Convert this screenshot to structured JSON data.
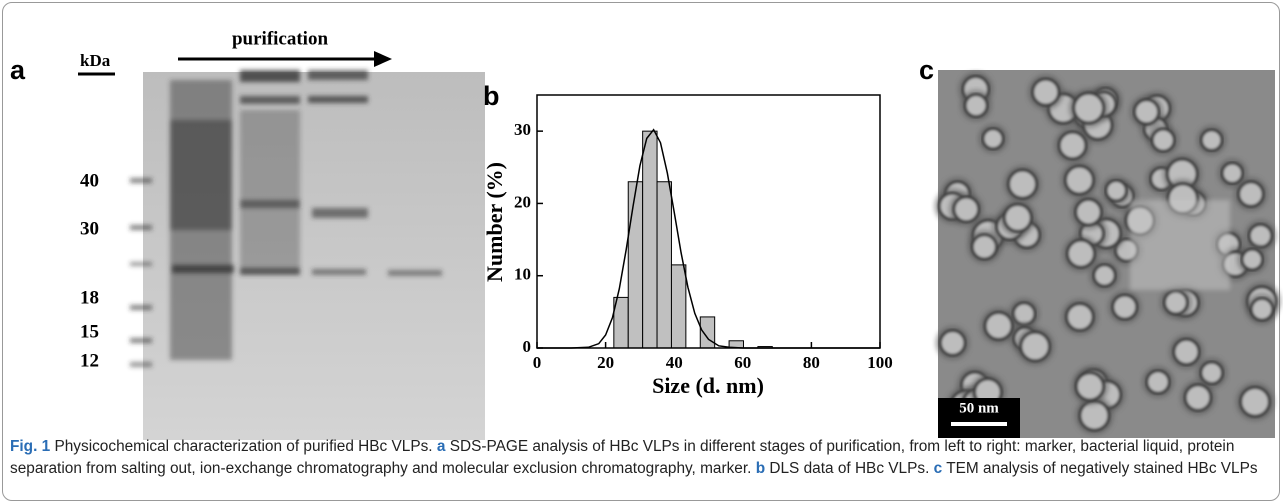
{
  "panel_a": {
    "letter": "a",
    "unit": "kDa",
    "arrow_label": "purification",
    "markers": [
      "40",
      "30",
      "18",
      "15",
      "12"
    ]
  },
  "chart_data": {
    "type": "histogram",
    "letter": "b",
    "y_label": "Number (%)",
    "x_label": "Size (d. nm)",
    "bins": [
      22.4,
      26.6,
      30.8,
      35,
      39.2,
      43.4,
      47.6,
      51.8,
      56,
      60.2,
      64.4,
      68.6
    ],
    "values": [
      7,
      23,
      30,
      23,
      11.5,
      0,
      4.3,
      0,
      1,
      0,
      0.2
    ],
    "color": "#c0c0c0",
    "fit_curve": {
      "x": [
        0,
        10,
        15,
        18,
        20,
        22,
        24,
        26,
        28,
        30,
        32,
        34,
        36,
        38,
        40,
        42,
        44,
        46,
        48,
        50,
        53,
        56,
        60,
        70,
        80,
        100
      ],
      "values": [
        0,
        0,
        0.1,
        0.6,
        1.8,
        4.2,
        8.2,
        13.6,
        19.6,
        25.2,
        29.0,
        30.2,
        28.4,
        24.2,
        18.8,
        13.2,
        8.4,
        4.8,
        2.5,
        1.2,
        0.3,
        0.1,
        0,
        0,
        0,
        0
      ]
    },
    "xlim": [
      0,
      100
    ],
    "ylim": [
      0,
      35
    ],
    "xticks": [
      0,
      20,
      40,
      60,
      80,
      100
    ],
    "yticks": [
      0,
      10,
      20,
      30
    ]
  },
  "panel_c": {
    "letter": "c",
    "scale_bar": "50 nm"
  },
  "caption": {
    "fig": "Fig. 1",
    "text": " Physicochemical characterization of purified HBc VLPs. ",
    "a": "a",
    "a_text": " SDS-PAGE analysis of HBc VLPs in different stages of purification, from left to right: marker, bacterial liquid, protein separation from salting out, ion-exchange chromatography and molecular exclusion chromatography, marker. ",
    "b": "b",
    "b_text": " DLS data of HBc VLPs. ",
    "c": "c",
    "c_text": " TEM analysis of negatively stained HBc VLPs"
  }
}
